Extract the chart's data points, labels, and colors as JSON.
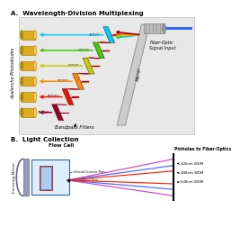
{
  "title_a": "A.  Wavelength-Division Multiplexing",
  "title_b": "B.  Light Collection",
  "filter_colors": [
    "#00ccff",
    "#44cc00",
    "#cccc00",
    "#ff8800",
    "#ee1100",
    "#990022"
  ],
  "filter_labels": [
    "488/21",
    "525/30",
    "585/41",
    "610/20",
    "660/20",
    "780/60"
  ],
  "arrow_colors": [
    "#00ccff",
    "#44cc00",
    "#cccc00",
    "#ff8800",
    "#ee1100",
    "#990022"
  ],
  "pd_gold": "#ddaa22",
  "pd_gold_dark": "#aa8800",
  "pd_gold_light": "#ffcc55",
  "panel_a_bg": "#e0e0e0",
  "mirror_color": "#cccccc",
  "mirror_edge": "#999999",
  "fiber_body": "#aaaaaa",
  "fiber_cable": "#3366ff",
  "label_fontsize": 4.5,
  "small_fontsize": 3.2,
  "wdm_labels": [
    "405nm WDM",
    "488nm WDM",
    "638nm WDM"
  ],
  "beam_colors_b": [
    "#cc44cc",
    "#4466ff",
    "#ff2200"
  ]
}
